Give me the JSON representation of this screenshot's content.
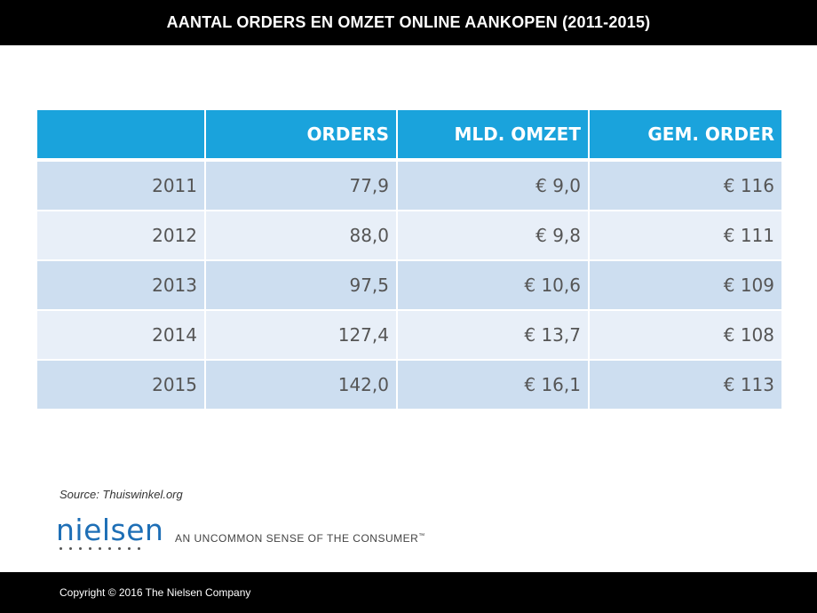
{
  "header": {
    "title": "AANTAL ORDERS EN OMZET ONLINE AANKOPEN (2011-2015)"
  },
  "chart_data": {
    "type": "table",
    "columns": [
      "",
      "ORDERS",
      "MLD. OMZET",
      "GEM. ORDER"
    ],
    "rows": [
      [
        "2011",
        "77,9",
        "€ 9,0",
        "€ 116"
      ],
      [
        "2012",
        "88,0",
        "€ 9,8",
        "€ 111"
      ],
      [
        "2013",
        "97,5",
        "€ 10,6",
        "€ 109"
      ],
      [
        "2014",
        "127,4",
        "€ 13,7",
        "€ 108"
      ],
      [
        "2015",
        "142,0",
        "€ 16,1",
        "€ 113"
      ]
    ]
  },
  "footer": {
    "source": "Source: Thuiswinkel.org",
    "logo_text": "nielsen",
    "tagline": "AN UNCOMMON SENSE OF THE CONSUMER",
    "trademark": "™",
    "copyright": "Copyright © 2016 The Nielsen Company"
  },
  "colors": {
    "header_bg": "#1aa3dc",
    "row_dark": "#cddef0",
    "row_light": "#e8eff8",
    "logo": "#1e6fb6"
  }
}
